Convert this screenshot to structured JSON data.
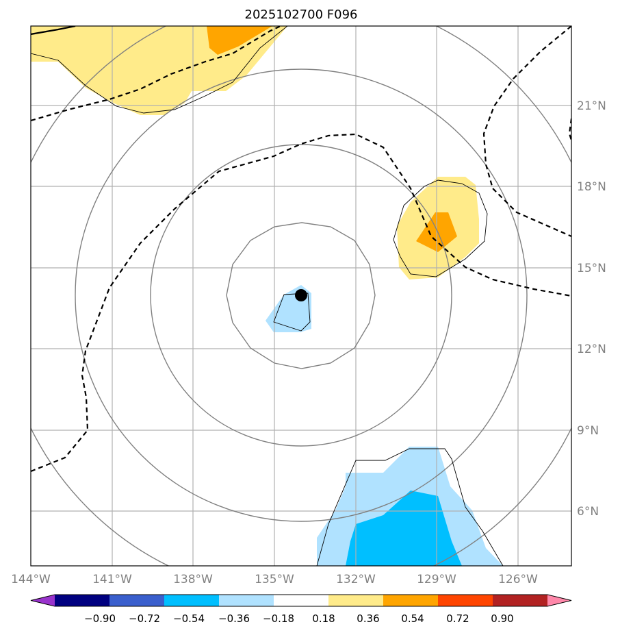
{
  "title": "2025102700 F096",
  "map": {
    "lon_labels": [
      "144°W",
      "141°W",
      "138°W",
      "135°W",
      "132°W",
      "129°W",
      "126°W"
    ],
    "lat_labels": [
      "21°N",
      "18°N",
      "15°N",
      "12°N",
      "9°N",
      "6°N"
    ],
    "storm_center": {
      "lon": -134.0,
      "lat": 14.0
    }
  },
  "colorbar": {
    "ticks": [
      "−0.90",
      "−0.72",
      "−0.54",
      "−0.36",
      "−0.18",
      "0.18",
      "0.36",
      "0.54",
      "0.72",
      "0.90"
    ],
    "colors": [
      "#9933cc",
      "#000080",
      "#3a5fcd",
      "#00bfff",
      "#b0e2ff",
      "#ffffff",
      "#ffeb8a",
      "#ffa500",
      "#ff4500",
      "#b22222",
      "#ff88aa"
    ]
  }
}
